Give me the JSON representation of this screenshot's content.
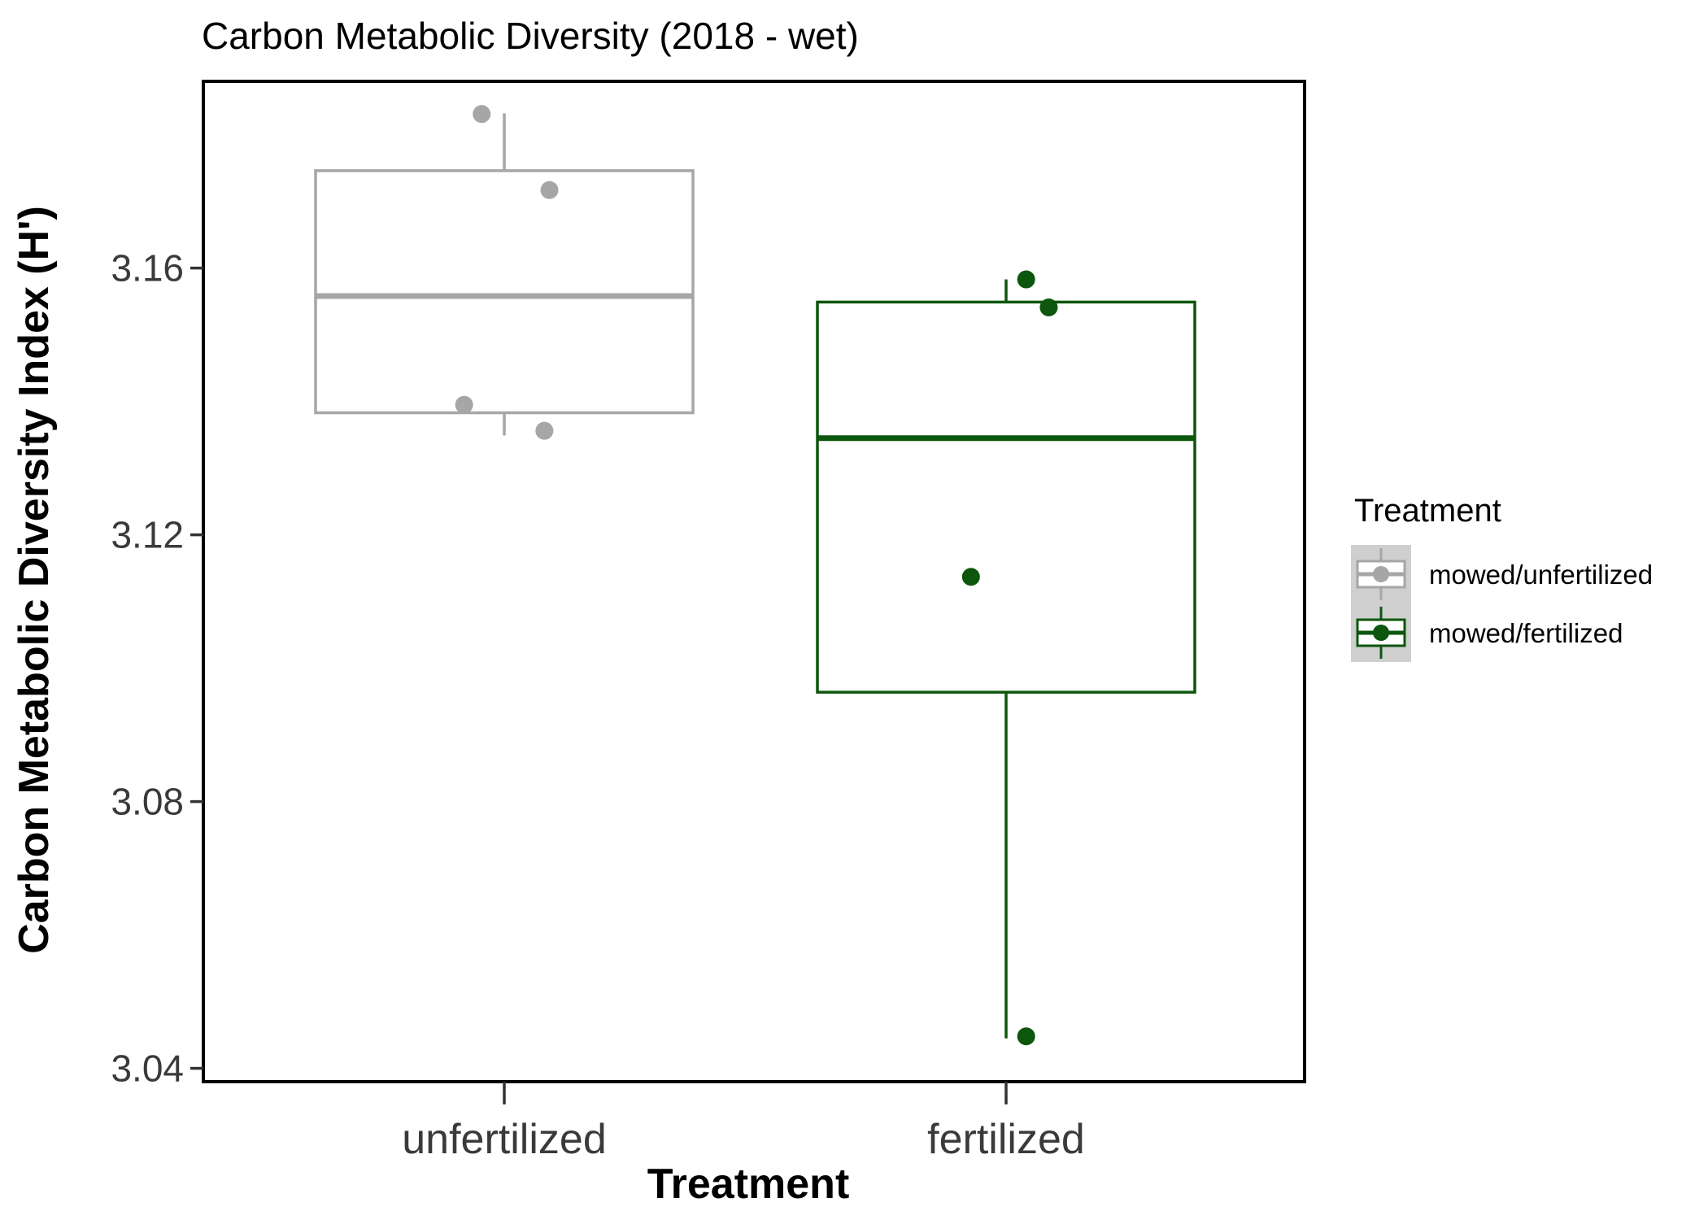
{
  "chart_data": {
    "type": "boxplot",
    "title": "Carbon Metabolic Diversity (2018 - wet)",
    "xlabel": "Treatment",
    "ylabel": "Carbon Metabolic Diversity Index (H')",
    "categories": [
      "unfertilized",
      "fertilized"
    ],
    "yticks": [
      3.04,
      3.08,
      3.12,
      3.16
    ],
    "ylim": [
      3.038,
      3.188
    ],
    "legend": {
      "title": "Treatment",
      "position": "right",
      "entries": [
        "mowed/unfertilized",
        "mowed/fertilized"
      ]
    },
    "series": [
      {
        "name": "mowed/unfertilized",
        "category": "unfertilized",
        "color": "#a6a6a6",
        "box": {
          "whisker_low": 3.1349,
          "q1": 3.1383,
          "median": 3.1558,
          "q3": 3.1746,
          "whisker_high": 3.1832
        },
        "points": [
          {
            "x": -0.045,
            "y": 3.1831
          },
          {
            "x": 0.09,
            "y": 3.1717
          },
          {
            "x": -0.08,
            "y": 3.1395
          },
          {
            "x": 0.08,
            "y": 3.1356
          }
        ]
      },
      {
        "name": "mowed/fertilized",
        "category": "fertilized",
        "color": "#0d560d",
        "box": {
          "whisker_low": 3.0445,
          "q1": 3.0964,
          "median": 3.1345,
          "q3": 3.1549,
          "whisker_high": 3.1583
        },
        "points": [
          {
            "x": 0.04,
            "y": 3.1583
          },
          {
            "x": 0.085,
            "y": 3.1541
          },
          {
            "x": -0.07,
            "y": 3.1137
          },
          {
            "x": 0.04,
            "y": 3.0448
          }
        ]
      }
    ],
    "grid": false
  }
}
